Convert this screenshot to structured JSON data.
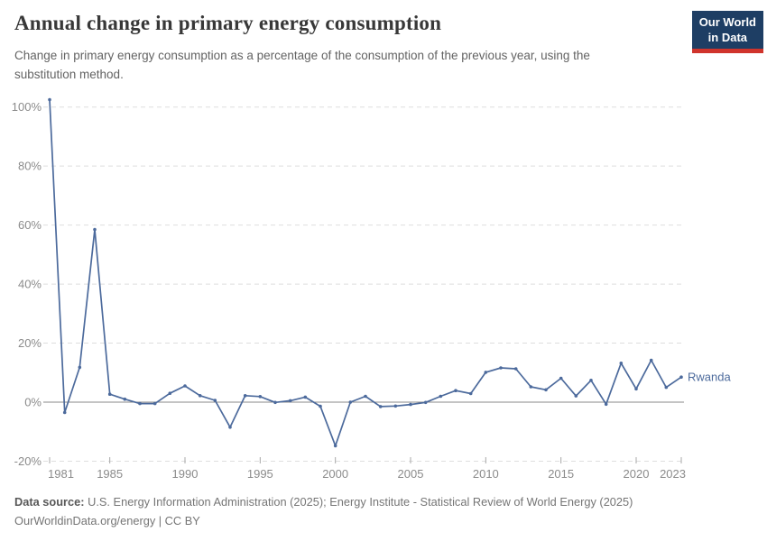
{
  "header": {
    "title": "Annual change in primary energy consumption",
    "subtitle_lines": [
      "Change in primary energy consumption as a percentage of the consumption of the previous year, using the",
      "substitution method."
    ],
    "logo": {
      "line1": "Our World",
      "line2": "in Data"
    }
  },
  "chart_data": {
    "type": "line",
    "title": "Annual change in primary energy consumption",
    "xlabel": "",
    "ylabel": "",
    "unit": "%",
    "grid": true,
    "legend_position": "end-of-line",
    "xlim": [
      1981,
      2023
    ],
    "ylim": [
      -20,
      103
    ],
    "xticks": [
      1981,
      1985,
      1990,
      1995,
      2000,
      2005,
      2010,
      2015,
      2020,
      2023
    ],
    "yticks": [
      -20,
      0,
      20,
      40,
      60,
      80,
      100
    ],
    "ytick_suffix": "%",
    "x": [
      1981,
      1982,
      1983,
      1984,
      1985,
      1986,
      1987,
      1988,
      1989,
      1990,
      1991,
      1992,
      1993,
      1994,
      1995,
      1996,
      1997,
      1998,
      1999,
      2000,
      2001,
      2002,
      2003,
      2004,
      2005,
      2006,
      2007,
      2008,
      2009,
      2010,
      2011,
      2012,
      2013,
      2014,
      2015,
      2016,
      2017,
      2018,
      2019,
      2020,
      2021,
      2022,
      2023
    ],
    "series": [
      {
        "name": "Rwanda",
        "color": "#4c6a9c",
        "values": [
          102.5,
          -3.5,
          11.8,
          58.5,
          2.7,
          1.0,
          -0.5,
          -0.5,
          3.0,
          5.5,
          2.2,
          0.6,
          -8.5,
          2.2,
          1.9,
          -0.1,
          0.5,
          1.7,
          -1.4,
          -14.8,
          0.0,
          2.0,
          -1.5,
          -1.3,
          -0.8,
          -0.1,
          2.0,
          3.9,
          2.9,
          10.1,
          11.6,
          11.3,
          5.2,
          4.2,
          8.1,
          2.1,
          7.4,
          -0.7,
          13.2,
          4.5,
          14.2,
          5.0,
          8.5
        ]
      }
    ],
    "colors": {
      "gridline": "#dedede",
      "zero_line": "#8a8a8a",
      "tick_label": "#8b8b8b",
      "tick_mark": "#a8a8a8"
    }
  },
  "footer": {
    "source_label": "Data source:",
    "source_text": "U.S. Energy Information Administration (2025); Energy Institute - Statistical Review of World Energy (2025)",
    "credit_line": "OurWorldinData.org/energy | CC BY"
  }
}
